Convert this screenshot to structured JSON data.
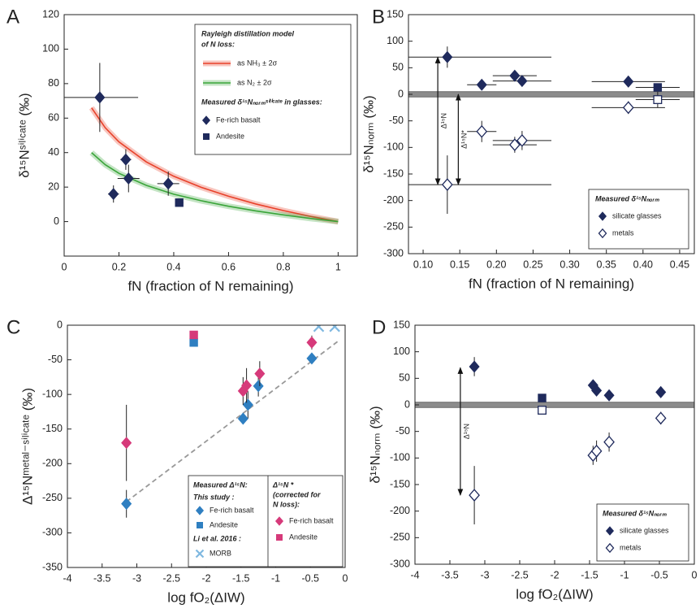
{
  "chart_data": [
    {
      "type": "scatter",
      "panel": "A",
      "ylabel": "δ¹⁵Nˢⁱˡⁱᶜᵃᵗᵉ (‰)",
      "xlabel": "fN  (fraction of N remaining)",
      "xlim": [
        0,
        1.07
      ],
      "ylim": [
        -20,
        120
      ],
      "xticks": [
        0,
        0.2,
        0.4,
        0.6,
        0.8,
        1
      ],
      "yticks": [
        0,
        20,
        40,
        60,
        80,
        100,
        120
      ],
      "legend_title": [
        "Rayleigh distillation model",
        "of N loss:"
      ],
      "legend_subtitle": "Measured δ¹⁵Nₙₒᵣₘˢⁱˡⁱᶜᵃᵗᵉ in glasses:",
      "series": [
        {
          "name": "as NH₃ ± 2σ",
          "mode": "line",
          "color": "#e8412a",
          "x": [
            0.1,
            0.15,
            0.2,
            0.3,
            0.4,
            0.5,
            0.6,
            0.7,
            0.8,
            0.9,
            1
          ],
          "values": [
            66,
            54.4,
            46.2,
            34.6,
            26.3,
            19.9,
            14.7,
            10.2,
            6.4,
            3,
            0
          ]
        },
        {
          "name": "as N₂ ± 2σ",
          "mode": "line",
          "color": "#3aa53a",
          "x": [
            0.1,
            0.15,
            0.2,
            0.3,
            0.4,
            0.5,
            0.6,
            0.7,
            0.8,
            0.9,
            1
          ],
          "values": [
            40,
            33,
            28,
            21,
            15.9,
            12.1,
            8.9,
            6.2,
            3.9,
            1.8,
            0
          ]
        },
        {
          "name": "Fe-rich basalt",
          "marker": "diamond",
          "color": "#1f2a5c",
          "x": [
            0.13,
            0.18,
            0.225,
            0.235,
            0.38
          ],
          "values": [
            72,
            16,
            36,
            25,
            22
          ],
          "xerr": [
            0.14,
            0.02,
            0.02,
            0.04,
            0.04
          ],
          "yerr": [
            20,
            5,
            6,
            8,
            7
          ]
        },
        {
          "name": "Andesite",
          "marker": "square",
          "color": "#1f2a5c",
          "x": [
            0.42
          ],
          "values": [
            11
          ],
          "xerr": [
            0.015
          ],
          "yerr": [
            2
          ]
        }
      ]
    },
    {
      "type": "scatter",
      "panel": "B",
      "ylabel": "δ¹⁵Nₙₒᵣₘ (‰)",
      "xlabel": "fN  (fraction of N remaining)",
      "xlim": [
        0.08,
        0.47
      ],
      "ylim": [
        -300,
        150
      ],
      "xticks": [
        {
          "value": 0.1,
          "label": "0.10"
        },
        0.15,
        {
          "value": 0.2,
          "label": "0.20"
        },
        0.25,
        {
          "value": 0.3,
          "label": "0.30"
        },
        0.35,
        {
          "value": 0.4,
          "label": "0.40"
        },
        0.45
      ],
      "yticks": [
        -300,
        -250,
        -200,
        -150,
        -100,
        -50,
        0,
        50,
        100,
        150
      ],
      "zero_band": [
        -5,
        5
      ],
      "arrows": [
        {
          "label": "Δ¹⁵N",
          "x": 0.12,
          "from": 70,
          "to": -170
        },
        {
          "label": "Δ¹⁵N*",
          "x": 0.148,
          "from": 0,
          "to": -170
        }
      ],
      "legend_title": "Measured δ¹⁵Nₙₒᵣₘ",
      "series": [
        {
          "name": "silicate glasses",
          "color": "#1f2a5c",
          "markers": [
            "diamond",
            "diamond",
            "diamond",
            "diamond",
            "diamond",
            "square"
          ],
          "x": [
            0.133,
            0.18,
            0.225,
            0.235,
            0.38,
            0.42
          ],
          "values": [
            70,
            18,
            35,
            25,
            24,
            13
          ],
          "xerr": [
            0.142,
            0.02,
            0.03,
            0.04,
            0.05,
            0.03
          ],
          "yerr": [
            20,
            5,
            6,
            8,
            5,
            5
          ]
        },
        {
          "name": "metals",
          "color": "#1f2a5c",
          "open": true,
          "markers": [
            "diamond",
            "diamond",
            "diamond",
            "diamond",
            "diamond",
            "square"
          ],
          "x": [
            0.133,
            0.18,
            0.225,
            0.235,
            0.38,
            0.42
          ],
          "values": [
            -170,
            -70,
            -95,
            -87,
            -25,
            -10
          ],
          "xerr": [
            0.142,
            0.02,
            0.03,
            0.04,
            0.05,
            0.03
          ],
          "yerr": [
            55,
            20,
            15,
            18,
            12,
            15
          ]
        }
      ]
    },
    {
      "type": "scatter",
      "panel": "C",
      "ylabel": "Δ¹⁵Nᵐᵉᵗᵃˡ⁻ˢⁱˡⁱᶜᵃᵗᵉ (‰)",
      "xlabel": "log fO₂(ΔIW)",
      "xlim": [
        -4,
        0
      ],
      "ylim": [
        -350,
        0
      ],
      "xticks": [
        -4,
        -3.5,
        -3,
        -2.5,
        -2,
        -1.5,
        -1,
        -0.5,
        0
      ],
      "yticks": [
        -350,
        -300,
        -250,
        -200,
        -150,
        -100,
        -50,
        0
      ],
      "trend": {
        "x": [
          -3.15,
          -0.1
        ],
        "values": [
          -255,
          -23
        ]
      },
      "legend_title": "Measured Δ¹⁵N:",
      "legend_notes": [
        "This study :",
        "Li et al. 2016 :"
      ],
      "legend_title_2": [
        "Δ¹⁵N *",
        "(corrected for",
        "N loss):"
      ],
      "series": [
        {
          "name": "Fe-rich basalt",
          "marker": "diamond",
          "color": "#2f7fc1",
          "x": [
            -3.15,
            -1.47,
            -1.4,
            -1.25,
            -0.48
          ],
          "values": [
            -258,
            -135,
            -115,
            -88,
            -48
          ],
          "yerr": [
            20,
            5,
            20,
            15,
            5
          ]
        },
        {
          "name": "Andesite",
          "marker": "square",
          "color": "#2f7fc1",
          "x": [
            -2.18
          ],
          "values": [
            -25
          ]
        },
        {
          "name": "MORB",
          "marker": "cross",
          "color": "#7fb8e0",
          "x": [
            -0.38,
            -0.15
          ],
          "values": [
            -2,
            -2
          ]
        },
        {
          "name": "Fe-rich basalt",
          "marker": "diamond",
          "color": "#d63a7a",
          "x": [
            -3.15,
            -1.47,
            -1.42,
            -1.23,
            -0.48
          ],
          "values": [
            -170,
            -95,
            -87,
            -70,
            -25
          ],
          "yerr": [
            55,
            20,
            25,
            18,
            10
          ]
        },
        {
          "name": "Andesite",
          "marker": "square",
          "color": "#d63a7a",
          "x": [
            -2.18
          ],
          "values": [
            -14
          ]
        }
      ]
    },
    {
      "type": "scatter",
      "panel": "D",
      "ylabel": "δ¹⁵Nₙₒᵣₘ (‰)",
      "xlabel": "log fO₂(ΔIW)",
      "xlim": [
        -4,
        0
      ],
      "ylim": [
        -300,
        150
      ],
      "xticks": [
        -4,
        -3.5,
        -3,
        -2.5,
        -2,
        -1.5,
        -1,
        -0.5,
        0
      ],
      "yticks": [
        -300,
        -250,
        -200,
        -150,
        -100,
        -50,
        0,
        50,
        100,
        150
      ],
      "zero_band": [
        -5,
        5
      ],
      "arrows": [
        {
          "label": "Δ¹⁵N",
          "x": -3.35,
          "from": 70,
          "to": -170
        }
      ],
      "legend_title": "Measured δ¹⁵Nₙₒᵣₘ",
      "series": [
        {
          "name": "silicate glasses",
          "color": "#1f2a5c",
          "markers": [
            "diamond",
            "square",
            "diamond",
            "diamond",
            "diamond",
            "diamond"
          ],
          "x": [
            -3.15,
            -2.18,
            -1.45,
            -1.4,
            -1.22,
            -0.48
          ],
          "values": [
            72,
            13,
            37,
            27,
            18,
            24
          ],
          "yerr": [
            18,
            null,
            5,
            5,
            3,
            4
          ]
        },
        {
          "name": "metals",
          "color": "#1f2a5c",
          "open": true,
          "markers": [
            "diamond",
            "square",
            "diamond",
            "diamond",
            "diamond",
            "diamond"
          ],
          "x": [
            -3.15,
            -2.18,
            -1.45,
            -1.4,
            -1.22,
            -0.48
          ],
          "values": [
            -170,
            -10,
            -95,
            -87,
            -70,
            -25
          ],
          "yerr": [
            55,
            null,
            18,
            20,
            18,
            12
          ]
        }
      ]
    }
  ]
}
